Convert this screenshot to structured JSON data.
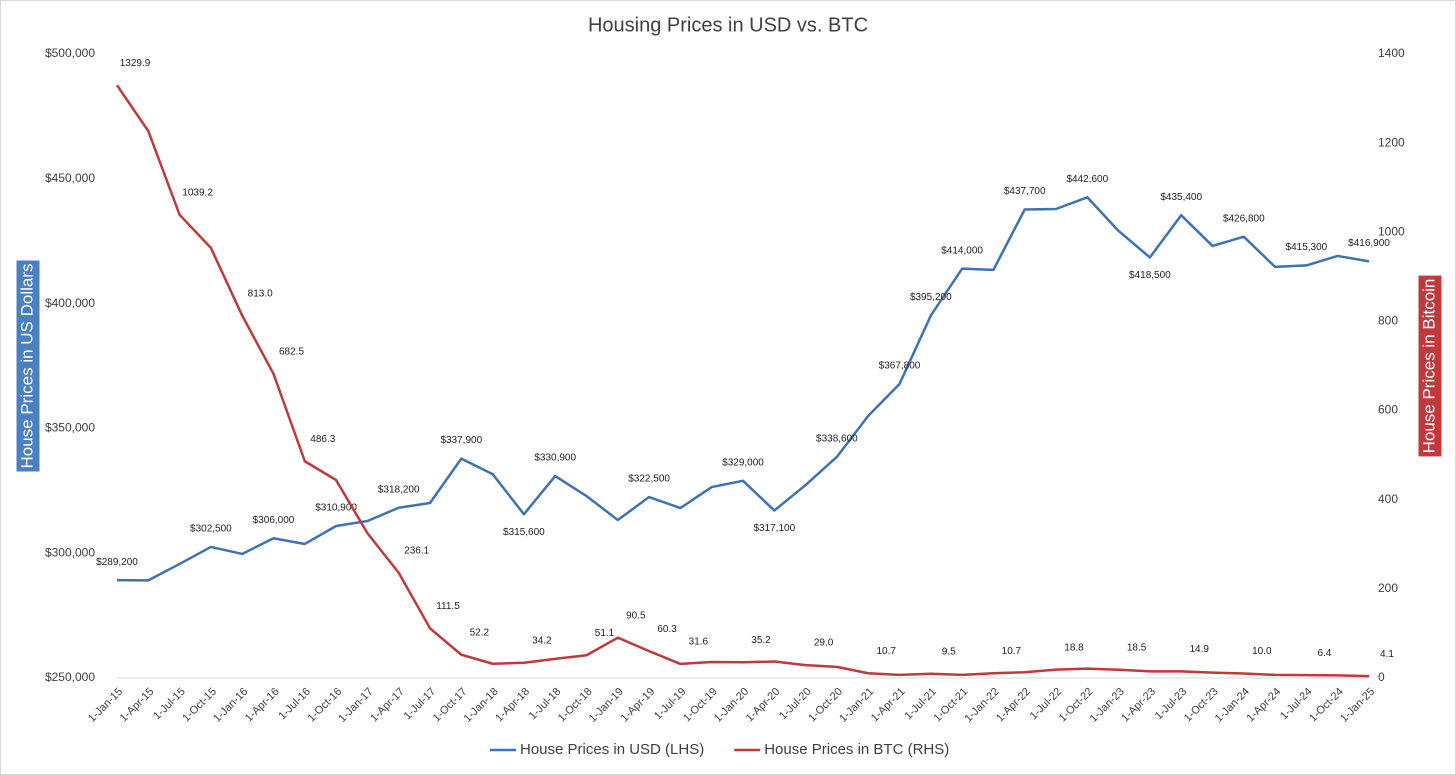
{
  "chart_data": {
    "type": "line",
    "title": "Housing Prices in USD vs. BTC",
    "categories": [
      "1-Jan-15",
      "1-Apr-15",
      "1-Jul-15",
      "1-Oct-15",
      "1-Jan-16",
      "1-Apr-16",
      "1-Jul-16",
      "1-Oct-16",
      "1-Jan-17",
      "1-Apr-17",
      "1-Jul-17",
      "1-Oct-17",
      "1-Jan-18",
      "1-Apr-18",
      "1-Jul-18",
      "1-Oct-18",
      "1-Jan-19",
      "1-Apr-19",
      "1-Jul-19",
      "1-Oct-19",
      "1-Jan-20",
      "1-Apr-20",
      "1-Jul-20",
      "1-Oct-20",
      "1-Jan-21",
      "1-Apr-21",
      "1-Jul-21",
      "1-Oct-21",
      "1-Jan-22",
      "1-Apr-22",
      "1-Jul-22",
      "1-Oct-22",
      "1-Jan-23",
      "1-Apr-23",
      "1-Jul-23",
      "1-Oct-23",
      "1-Jan-24",
      "1-Apr-24",
      "1-Jul-24",
      "1-Oct-24",
      "1-Jan-25"
    ],
    "series": [
      {
        "name": "House Prices in USD (LHS)",
        "color": "#3d72b4",
        "axis": "y",
        "values": [
          289200,
          289100,
          295700,
          302500,
          299700,
          306000,
          303700,
          310900,
          312900,
          318200,
          320100,
          337900,
          331700,
          315600,
          330900,
          322900,
          313300,
          322500,
          318100,
          326500,
          329000,
          317100,
          327300,
          338600,
          355000,
          367800,
          395200,
          414000,
          413500,
          437700,
          437900,
          442600,
          429100,
          418500,
          435400,
          423100,
          426800,
          414700,
          415300,
          419100,
          416900
        ],
        "value_labels": [
          "$289,200",
          null,
          null,
          "$302,500",
          null,
          "$306,000",
          null,
          "$310,900",
          null,
          "$318,200",
          null,
          "$337,900",
          null,
          "$315,600",
          "$330,900",
          null,
          null,
          "$322,500",
          null,
          null,
          "$329,000",
          "$317,100",
          null,
          "$338,600",
          null,
          "$367,800",
          "$395,200",
          "$414,000",
          null,
          "$437,700",
          null,
          "$442,600",
          null,
          "$418,500",
          "$435,400",
          null,
          "$426,800",
          null,
          "$415,300",
          null,
          "$416,900"
        ]
      },
      {
        "name": "House Prices in BTC (RHS)",
        "color": "#c0393b",
        "axis": "y2",
        "values": [
          1329.9,
          1227,
          1039.2,
          965,
          813.0,
          682.5,
          486.3,
          444,
          325,
          236.1,
          111.5,
          52.2,
          32,
          34.2,
          43,
          51.1,
          90.5,
          60.3,
          31.6,
          36,
          35.2,
          37,
          29.0,
          25,
          10.7,
          7,
          9.5,
          7,
          10.7,
          13,
          18.8,
          21,
          18.5,
          15,
          14.9,
          12,
          10.0,
          7,
          6.4,
          6,
          4.1
        ],
        "value_labels": [
          "1329.9",
          null,
          "1039.2",
          null,
          "813.0",
          "682.5",
          "486.3",
          null,
          null,
          "236.1",
          "111.5",
          "52.2",
          null,
          "34.2",
          null,
          "51.1",
          "90.5",
          "60.3",
          "31.6",
          null,
          "35.2",
          null,
          "29.0",
          null,
          "10.7",
          null,
          "9.5",
          null,
          "10.7",
          null,
          "18.8",
          null,
          "18.5",
          null,
          "14.9",
          null,
          "10.0",
          null,
          "6.4",
          null,
          "4.1"
        ]
      }
    ],
    "ylabel": "House Prices in US Dollars",
    "y2label": "House Prices in Bitcoin",
    "ylim": [
      250000,
      500000
    ],
    "yticks": [
      {
        "value": 250000,
        "label": "$250,000"
      },
      {
        "value": 300000,
        "label": "$300,000"
      },
      {
        "value": 350000,
        "label": "$350,000"
      },
      {
        "value": 400000,
        "label": "$400,000"
      },
      {
        "value": 450000,
        "label": "$450,000"
      },
      {
        "value": 500000,
        "label": "$500,000"
      }
    ],
    "y2lim": [
      0,
      1400
    ],
    "y2ticks": [
      0,
      200,
      400,
      600,
      800,
      1000,
      1200,
      1400
    ],
    "legend": "bottom",
    "grid": false
  }
}
